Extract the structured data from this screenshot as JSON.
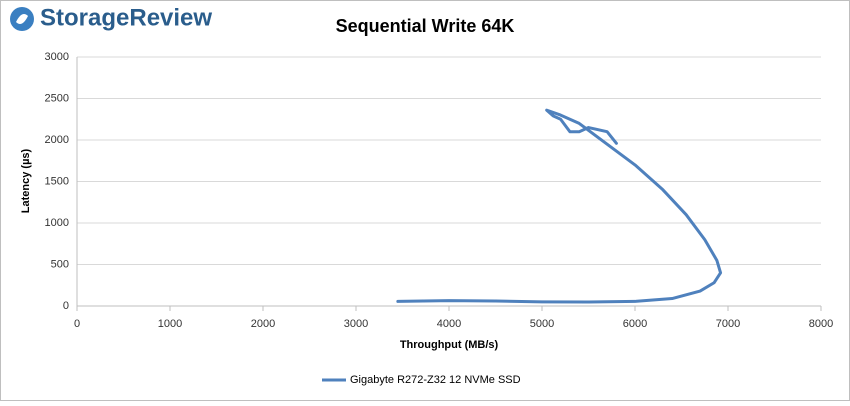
{
  "logo": "StorageReview",
  "chart_data": {
    "type": "line",
    "title": "Sequential Write 64K",
    "xlabel": "Throughput (MB/s)",
    "ylabel": "Latency (µs)",
    "xlim": [
      0,
      8000
    ],
    "xticks": [
      0,
      1000,
      2000,
      3000,
      4000,
      5000,
      6000,
      7000,
      8000
    ],
    "ylim": [
      0,
      3000
    ],
    "yticks": [
      0,
      500,
      1000,
      1500,
      2000,
      2500,
      3000
    ],
    "grid": true,
    "legend": "bottom",
    "series": [
      {
        "name": "Gigabyte R272-Z32 12 NVMe SSD",
        "color": "#4f81bd",
        "x": [
          3450,
          4000,
          4500,
          5000,
          5500,
          6000,
          6400,
          6700,
          6850,
          6920,
          6880,
          6750,
          6550,
          6300,
          6000,
          5700,
          5400,
          5200,
          5050,
          5120,
          5200,
          5300,
          5400,
          5500,
          5700,
          5800
        ],
        "values": [
          55,
          65,
          60,
          50,
          48,
          55,
          90,
          180,
          280,
          400,
          550,
          800,
          1100,
          1400,
          1700,
          1950,
          2200,
          2300,
          2360,
          2290,
          2250,
          2100,
          2100,
          2150,
          2100,
          1960
        ]
      }
    ]
  }
}
